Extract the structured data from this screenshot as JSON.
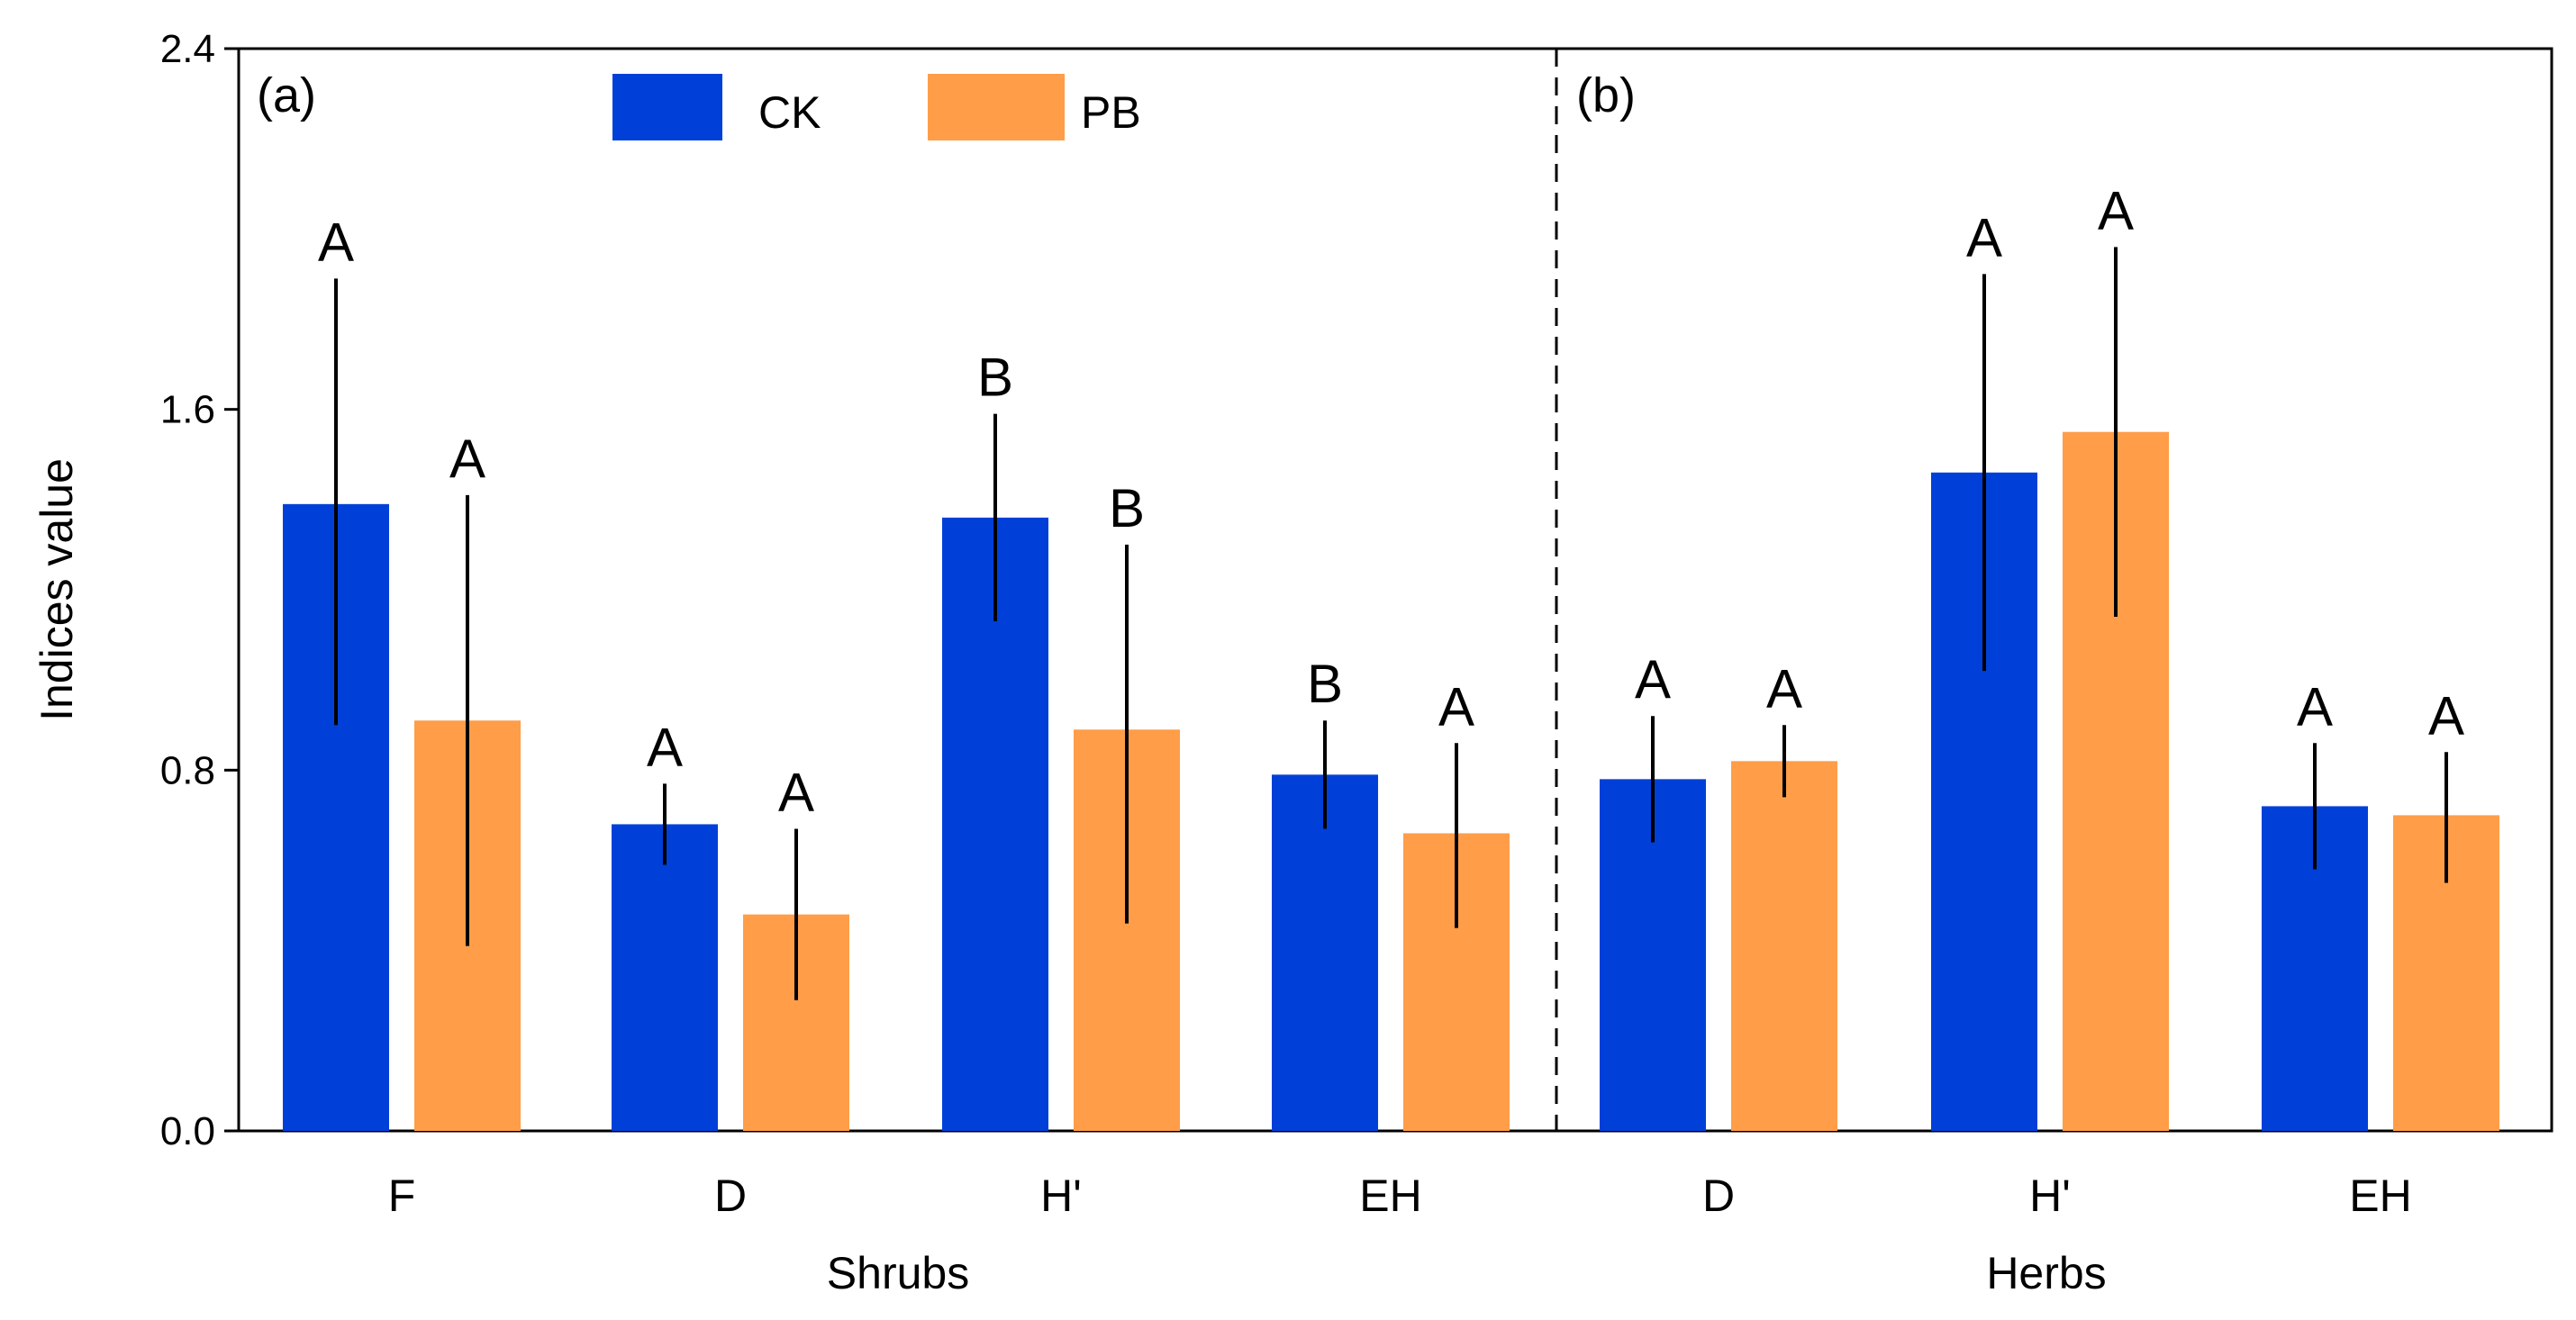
{
  "chart_data": {
    "type": "bar",
    "ylabel": "Indices value",
    "ylim": [
      0,
      2.4
    ],
    "yticks": [
      "0.0",
      "0.8",
      "1.6",
      "2.4"
    ],
    "yticks_values": [
      0,
      0.8,
      1.6,
      2.4
    ],
    "legend": {
      "placement": "top-center",
      "entries": [
        {
          "name": "CK",
          "color": "#0040d8"
        },
        {
          "name": "PB",
          "color": "#ff9d48"
        }
      ]
    },
    "panels": [
      {
        "label": "(a)",
        "xlabel": "Shrubs",
        "categories": [
          "F",
          "D",
          "H'",
          "EH"
        ],
        "series": [
          {
            "name": "CK",
            "color": "#0040d8",
            "values": [
              1.39,
              0.68,
              1.36,
              0.79
            ],
            "err_low": [
              0.9,
              0.59,
              1.13,
              0.67
            ],
            "err_high": [
              1.89,
              0.77,
              1.59,
              0.91
            ],
            "letters": [
              "A",
              "A",
              "B",
              "B"
            ]
          },
          {
            "name": "PB",
            "color": "#ff9d48",
            "values": [
              0.91,
              0.48,
              0.89,
              0.66
            ],
            "err_low": [
              0.41,
              0.29,
              0.46,
              0.45
            ],
            "err_high": [
              1.41,
              0.67,
              1.3,
              0.86
            ],
            "letters": [
              "A",
              "A",
              "B",
              "A"
            ]
          }
        ]
      },
      {
        "label": "(b)",
        "xlabel": "Herbs",
        "categories": [
          "D",
          "H'",
          "EH"
        ],
        "series": [
          {
            "name": "CK",
            "color": "#0040d8",
            "values": [
              0.78,
              1.46,
              0.72
            ],
            "err_low": [
              0.64,
              1.02,
              0.58
            ],
            "err_high": [
              0.92,
              1.9,
              0.86
            ],
            "letters": [
              "A",
              "A",
              "A"
            ]
          },
          {
            "name": "PB",
            "color": "#ff9d48",
            "values": [
              0.82,
              1.55,
              0.7
            ],
            "err_low": [
              0.74,
              1.14,
              0.55
            ],
            "err_high": [
              0.9,
              1.96,
              0.84
            ],
            "letters": [
              "A",
              "A",
              "A"
            ]
          }
        ]
      }
    ]
  }
}
